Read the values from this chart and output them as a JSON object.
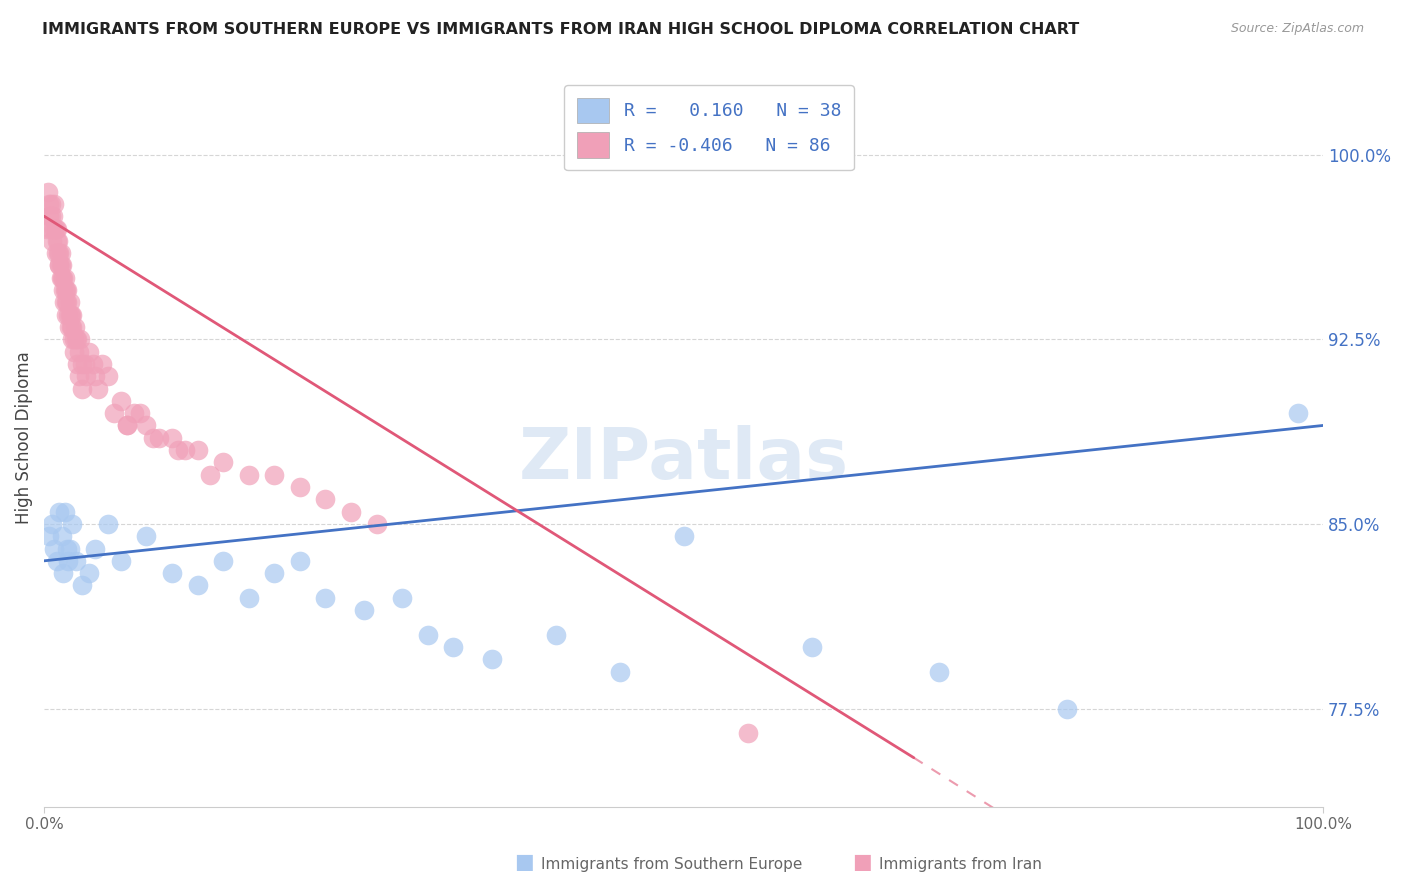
{
  "title": "IMMIGRANTS FROM SOUTHERN EUROPE VS IMMIGRANTS FROM IRAN HIGH SCHOOL DIPLOMA CORRELATION CHART",
  "source": "Source: ZipAtlas.com",
  "ylabel": "High School Diploma",
  "ylabel_right_ticks": [
    100.0,
    92.5,
    85.0,
    77.5
  ],
  "xmin": 0.0,
  "xmax": 100.0,
  "ymin": 73.5,
  "ymax": 103.5,
  "legend_blue_R": "0.160",
  "legend_blue_N": "38",
  "legend_pink_R": "-0.406",
  "legend_pink_N": "86",
  "blue_color": "#A8C8F0",
  "pink_color": "#F0A0B8",
  "blue_line_color": "#4472C4",
  "pink_line_color": "#E05878",
  "watermark": "ZIPatlas",
  "blue_scatter_x": [
    0.4,
    0.6,
    0.8,
    1.0,
    1.2,
    1.4,
    1.5,
    1.6,
    1.8,
    1.9,
    2.0,
    2.2,
    2.5,
    3.0,
    3.5,
    4.0,
    5.0,
    6.0,
    8.0,
    10.0,
    12.0,
    14.0,
    16.0,
    18.0,
    20.0,
    22.0,
    25.0,
    28.0,
    30.0,
    32.0,
    35.0,
    40.0,
    45.0,
    50.0,
    60.0,
    70.0,
    80.0,
    98.0
  ],
  "blue_scatter_y": [
    84.5,
    85.0,
    84.0,
    83.5,
    85.5,
    84.5,
    83.0,
    85.5,
    84.0,
    83.5,
    84.0,
    85.0,
    83.5,
    82.5,
    83.0,
    84.0,
    85.0,
    83.5,
    84.5,
    83.0,
    82.5,
    83.5,
    82.0,
    83.0,
    83.5,
    82.0,
    81.5,
    82.0,
    80.5,
    80.0,
    79.5,
    80.5,
    79.0,
    84.5,
    80.0,
    79.0,
    77.5,
    89.5
  ],
  "pink_scatter_x": [
    0.2,
    0.3,
    0.4,
    0.5,
    0.5,
    0.6,
    0.7,
    0.8,
    0.9,
    1.0,
    1.0,
    1.1,
    1.1,
    1.2,
    1.2,
    1.3,
    1.3,
    1.4,
    1.4,
    1.5,
    1.5,
    1.6,
    1.6,
    1.7,
    1.7,
    1.8,
    1.8,
    1.9,
    2.0,
    2.0,
    2.1,
    2.1,
    2.2,
    2.2,
    2.3,
    2.4,
    2.5,
    2.6,
    2.7,
    2.8,
    3.0,
    3.2,
    3.5,
    4.0,
    4.5,
    5.0,
    6.0,
    7.0,
    8.0,
    9.0,
    10.0,
    12.0,
    14.0,
    16.0,
    18.0,
    20.0,
    22.0,
    24.0,
    26.0,
    5.5,
    6.5,
    7.5,
    10.5,
    13.0,
    55.0,
    0.35,
    0.55,
    0.75,
    0.95,
    1.15,
    1.35,
    1.55,
    1.75,
    1.95,
    2.15,
    2.35,
    2.55,
    2.75,
    2.95,
    3.3,
    3.8,
    4.2,
    6.5,
    8.5,
    11.0
  ],
  "pink_scatter_y": [
    97.0,
    98.5,
    97.5,
    97.0,
    98.0,
    96.5,
    97.5,
    98.0,
    97.0,
    96.5,
    97.0,
    96.0,
    96.5,
    95.5,
    96.0,
    95.5,
    96.0,
    95.0,
    95.5,
    94.5,
    95.0,
    94.5,
    95.0,
    94.0,
    94.5,
    94.0,
    94.5,
    93.5,
    93.5,
    94.0,
    93.0,
    93.5,
    93.0,
    93.5,
    92.5,
    93.0,
    92.5,
    92.5,
    92.0,
    92.5,
    91.5,
    91.5,
    92.0,
    91.0,
    91.5,
    91.0,
    90.0,
    89.5,
    89.0,
    88.5,
    88.5,
    88.0,
    87.5,
    87.0,
    87.0,
    86.5,
    86.0,
    85.5,
    85.0,
    89.5,
    89.0,
    89.5,
    88.0,
    87.0,
    76.5,
    98.0,
    97.5,
    97.0,
    96.0,
    95.5,
    95.0,
    94.0,
    93.5,
    93.0,
    92.5,
    92.0,
    91.5,
    91.0,
    90.5,
    91.0,
    91.5,
    90.5,
    89.0,
    88.5,
    88.0
  ],
  "blue_line_start_x": 0.0,
  "blue_line_end_x": 100.0,
  "blue_line_start_y": 83.5,
  "blue_line_end_y": 89.0,
  "pink_line_solid_start_x": 0.0,
  "pink_line_solid_end_x": 68.0,
  "pink_line_start_y": 97.5,
  "pink_line_end_y": 75.5,
  "pink_line_dash_start_x": 68.0,
  "pink_line_dash_end_x": 100.0,
  "pink_line_dash_start_y": 75.5,
  "pink_line_dash_end_y": 65.0
}
